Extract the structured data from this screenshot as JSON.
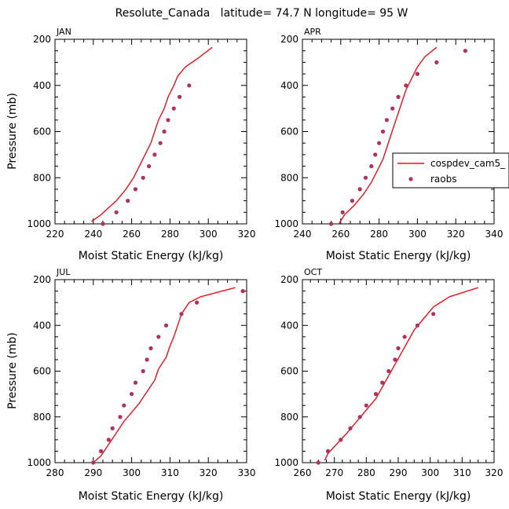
{
  "figure": {
    "title": "Resolute_Canada   latitude= 74.7 N longitude= 95 W",
    "line_color": "#e4141b",
    "dot_color": "#b03060"
  },
  "chart_data": [
    {
      "type": "line",
      "panel_label": "JAN",
      "xlabel": "Moist Static Energy (kJ/kg)",
      "ylabel": "Pressure (mb)",
      "xlim": [
        220,
        320
      ],
      "ylim": [
        1000,
        200
      ],
      "xticks": [
        "220",
        "240",
        "260",
        "280",
        "300",
        "320"
      ],
      "yticks": [
        "200",
        "400",
        "600",
        "800",
        "1000"
      ],
      "series": [
        {
          "name": "cospdev_cam5_",
          "kind": "line",
          "points": [
            [
              239,
              990
            ],
            [
              244,
              960
            ],
            [
              248,
              930
            ],
            [
              252,
              900
            ],
            [
              257,
              850
            ],
            [
              261,
              800
            ],
            [
              264,
              750
            ],
            [
              267,
              700
            ],
            [
              270,
              650
            ],
            [
              272,
              600
            ],
            [
              274,
              550
            ],
            [
              277,
              500
            ],
            [
              279,
              450
            ],
            [
              282,
              400
            ],
            [
              284,
              360
            ],
            [
              288,
              320
            ],
            [
              295,
              280
            ],
            [
              302,
              235
            ]
          ]
        },
        {
          "name": "raobs",
          "kind": "scatter",
          "points": [
            [
              245,
              1000
            ],
            [
              252,
              950
            ],
            [
              258,
              900
            ],
            [
              262,
              850
            ],
            [
              266,
              800
            ],
            [
              269,
              750
            ],
            [
              272,
              700
            ],
            [
              275,
              650
            ],
            [
              277,
              600
            ],
            [
              279,
              550
            ],
            [
              282,
              500
            ],
            [
              285,
              450
            ],
            [
              290,
              400
            ]
          ]
        }
      ]
    },
    {
      "type": "line",
      "panel_label": "APR",
      "xlabel": "Moist Static Energy (kJ/kg)",
      "ylabel": "",
      "xlim": [
        240,
        340
      ],
      "ylim": [
        1000,
        200
      ],
      "xticks": [
        "240",
        "260",
        "280",
        "300",
        "320",
        "340"
      ],
      "yticks": [
        "200",
        "400",
        "600",
        "800",
        "1000"
      ],
      "series": [
        {
          "name": "cospdev_cam5_",
          "kind": "line",
          "points": [
            [
              259,
              1000
            ],
            [
              262,
              960
            ],
            [
              267,
              920
            ],
            [
              272,
              870
            ],
            [
              276,
              820
            ],
            [
              279,
              770
            ],
            [
              282,
              720
            ],
            [
              284,
              670
            ],
            [
              286,
              620
            ],
            [
              288,
              570
            ],
            [
              290,
              520
            ],
            [
              292,
              470
            ],
            [
              294,
              420
            ],
            [
              297,
              370
            ],
            [
              300,
              320
            ],
            [
              304,
              275
            ],
            [
              310,
              235
            ]
          ]
        },
        {
          "name": "raobs",
          "kind": "scatter",
          "points": [
            [
              255,
              1000
            ],
            [
              261,
              950
            ],
            [
              266,
              900
            ],
            [
              270,
              850
            ],
            [
              273,
              800
            ],
            [
              276,
              750
            ],
            [
              278,
              700
            ],
            [
              280,
              650
            ],
            [
              282,
              600
            ],
            [
              284,
              550
            ],
            [
              287,
              500
            ],
            [
              290,
              450
            ],
            [
              294,
              400
            ],
            [
              300,
              350
            ],
            [
              310,
              300
            ],
            [
              325,
              250
            ]
          ]
        }
      ]
    },
    {
      "type": "line",
      "panel_label": "JUL",
      "xlabel": "Moist Static Energy (kJ/kg)",
      "ylabel": "Pressure (mb)",
      "xlim": [
        280,
        330
      ],
      "ylim": [
        1000,
        200
      ],
      "xticks": [
        "280",
        "290",
        "300",
        "310",
        "320",
        "330"
      ],
      "yticks": [
        "200",
        "400",
        "600",
        "800",
        "1000"
      ],
      "series": [
        {
          "name": "cospdev_cam5_",
          "kind": "line",
          "points": [
            [
              290,
              1000
            ],
            [
              292,
              970
            ],
            [
              294,
              920
            ],
            [
              296,
              870
            ],
            [
              298,
              820
            ],
            [
              300,
              780
            ],
            [
              302,
              740
            ],
            [
              304,
              690
            ],
            [
              306,
              640
            ],
            [
              307,
              590
            ],
            [
              309,
              540
            ],
            [
              310,
              490
            ],
            [
              311,
              450
            ],
            [
              312,
              400
            ],
            [
              313,
              350
            ],
            [
              315,
              300
            ],
            [
              318,
              275
            ],
            [
              327,
              235
            ]
          ]
        },
        {
          "name": "raobs",
          "kind": "scatter",
          "points": [
            [
              290,
              1000
            ],
            [
              292,
              950
            ],
            [
              294,
              900
            ],
            [
              295,
              850
            ],
            [
              297,
              800
            ],
            [
              298,
              750
            ],
            [
              300,
              700
            ],
            [
              301,
              650
            ],
            [
              303,
              600
            ],
            [
              304,
              550
            ],
            [
              305,
              500
            ],
            [
              307,
              450
            ],
            [
              309,
              400
            ],
            [
              313,
              350
            ],
            [
              317,
              300
            ],
            [
              329,
              250
            ]
          ]
        }
      ]
    },
    {
      "type": "line",
      "panel_label": "OCT",
      "xlabel": "Moist Static Energy (kJ/kg)",
      "ylabel": "",
      "xlim": [
        260,
        320
      ],
      "ylim": [
        1000,
        200
      ],
      "xticks": [
        "260",
        "270",
        "280",
        "290",
        "300",
        "310",
        "320"
      ],
      "yticks": [
        "200",
        "400",
        "600",
        "800",
        "1000"
      ],
      "series": [
        {
          "name": "cospdev_cam5_",
          "kind": "line",
          "points": [
            [
              267,
              990
            ],
            [
              268,
              960
            ],
            [
              270,
              930
            ],
            [
              272,
              900
            ],
            [
              274,
              870
            ],
            [
              277,
              820
            ],
            [
              280,
              770
            ],
            [
              283,
              720
            ],
            [
              285,
              670
            ],
            [
              287,
              620
            ],
            [
              289,
              570
            ],
            [
              291,
              520
            ],
            [
              293,
              470
            ],
            [
              295,
              420
            ],
            [
              298,
              370
            ],
            [
              301,
              320
            ],
            [
              306,
              275
            ],
            [
              315,
              235
            ]
          ]
        },
        {
          "name": "raobs",
          "kind": "scatter",
          "points": [
            [
              265,
              1000
            ],
            [
              268,
              950
            ],
            [
              272,
              900
            ],
            [
              275,
              850
            ],
            [
              278,
              800
            ],
            [
              280,
              750
            ],
            [
              283,
              700
            ],
            [
              285,
              650
            ],
            [
              287,
              600
            ],
            [
              289,
              550
            ],
            [
              290,
              500
            ],
            [
              292,
              450
            ],
            [
              296,
              400
            ],
            [
              301,
              350
            ]
          ]
        }
      ]
    }
  ],
  "legend": {
    "entries": [
      {
        "label": "cospdev_cam5_",
        "kind": "line"
      },
      {
        "label": "raobs",
        "kind": "scatter"
      }
    ]
  }
}
